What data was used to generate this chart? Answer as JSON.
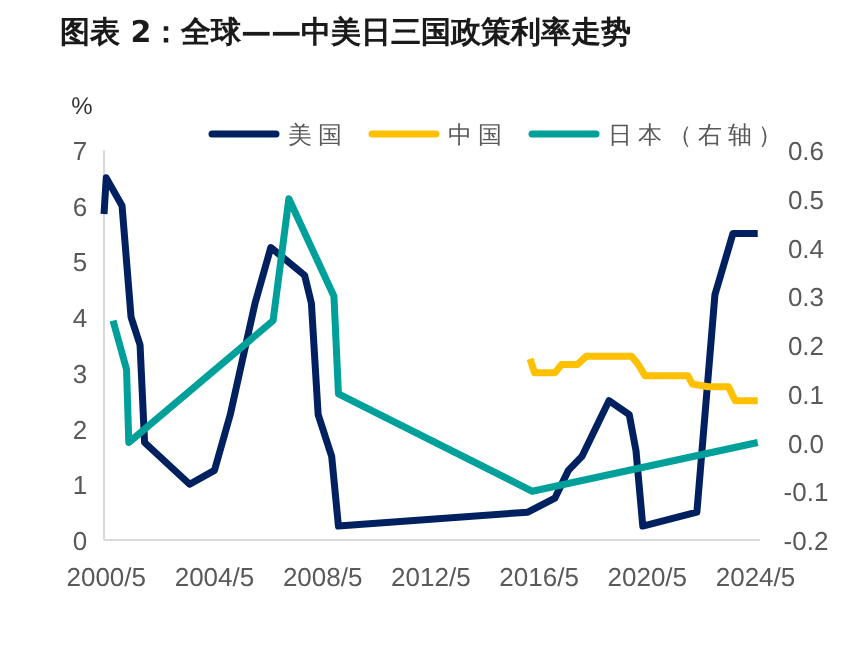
{
  "chart_data": {
    "type": "line",
    "title": "图表 2：全球——中美日三国政策利率走势",
    "ylabel": "%",
    "legend": "top",
    "grid": false,
    "xlim": [
      "2000-04",
      "2024-07"
    ],
    "xticks": [
      {
        "value": "2000-05",
        "label": "2000/5"
      },
      {
        "value": "2004-05",
        "label": "2004/5"
      },
      {
        "value": "2008-05",
        "label": "2008/5"
      },
      {
        "value": "2012-05",
        "label": "2012/5"
      },
      {
        "value": "2016-05",
        "label": "2016/5"
      },
      {
        "value": "2020-05",
        "label": "2020/5"
      },
      {
        "value": "2024-05",
        "label": "2024/5"
      }
    ],
    "ylim": [
      0,
      7
    ],
    "yticks": [
      0,
      1,
      2,
      3,
      4,
      5,
      6,
      7
    ],
    "y2lim": [
      -0.2,
      0.6
    ],
    "y2ticks": [
      {
        "value": 0.6,
        "label": "0.6"
      },
      {
        "value": 0.5,
        "label": "0.5"
      },
      {
        "value": 0.4,
        "label": "0.4"
      },
      {
        "value": 0.3,
        "label": "0.3"
      },
      {
        "value": 0.2,
        "label": "0.2"
      },
      {
        "value": 0.1,
        "label": "0.1"
      },
      {
        "value": 0,
        "label": "0.0"
      },
      {
        "value": -0.1,
        "label": "-0.1"
      },
      {
        "value": -0.2,
        "label": "-0.2"
      }
    ],
    "series": [
      {
        "name": "美国",
        "color": "#002060",
        "x": [
          "2000-04",
          "2000-05",
          "2000-12",
          "2001-04",
          "2001-08",
          "2001-10",
          "2003-06",
          "2004-05",
          "2004-12",
          "2005-11",
          "2006-06",
          "2007-09",
          "2007-12",
          "2008-03",
          "2008-09",
          "2008-12",
          "2015-12",
          "2016-12",
          "2017-06",
          "2017-12",
          "2018-12",
          "2019-09",
          "2019-12",
          "2020-03",
          "2022-03",
          "2022-11",
          "2023-07",
          "2024-06"
        ],
        "values": [
          5.85,
          6.5,
          6.0,
          4.0,
          3.5,
          1.75,
          1.0,
          1.25,
          2.25,
          4.25,
          5.25,
          4.75,
          4.25,
          2.25,
          1.5,
          0.25,
          0.5,
          0.75,
          1.25,
          1.5,
          2.5,
          2.25,
          1.6,
          0.25,
          0.5,
          4.4,
          5.5,
          5.5
        ]
      },
      {
        "name": "中国",
        "color": "#ffc000",
        "x": [
          "2016-01",
          "2016-03",
          "2016-12",
          "2017-03",
          "2017-10",
          "2018-02",
          "2019-10",
          "2020-01",
          "2020-04",
          "2021-11",
          "2022-01",
          "2022-08",
          "2023-05",
          "2023-08",
          "2024-06"
        ],
        "values": [
          3.25,
          3.0,
          3.0,
          3.15,
          3.15,
          3.3,
          3.3,
          3.15,
          2.95,
          2.95,
          2.8,
          2.75,
          2.75,
          2.5,
          2.5
        ]
      },
      {
        "name": "日本（右轴）",
        "color": "#00a09a",
        "axis": "y2",
        "x": [
          "2000-08",
          "2001-02",
          "2001-03",
          "2006-07",
          "2007-02",
          "2008-10",
          "2008-12",
          "2016-02",
          "2024-06"
        ],
        "values": [
          0.25,
          0.15,
          0.0,
          0.25,
          0.5,
          0.3,
          0.1,
          -0.1,
          0.0
        ]
      }
    ]
  }
}
